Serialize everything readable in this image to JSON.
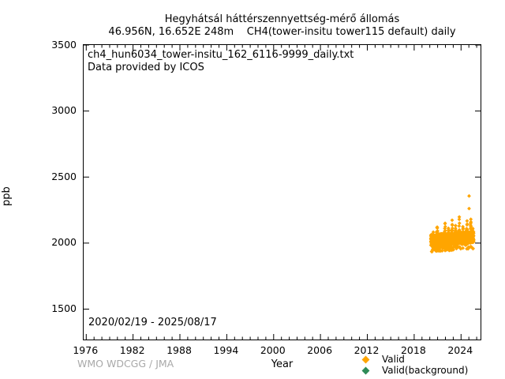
{
  "header": {
    "title_line1": "Hegyhátsál háttérszennyettség-mérő állomás",
    "title_line2": "46.956N, 16.652E 248m    CH4(tower-insitu tower115 default) daily"
  },
  "plot": {
    "annotation_line1": "ch4_hun6034_tower-insitu_162_6116-9999_daily.txt",
    "annotation_line2": "Data provided by ICOS",
    "date_range": "2020/02/19 - 2025/08/17"
  },
  "footer": {
    "credit": "WMO WDCGG / JMA"
  },
  "chart_data": {
    "type": "scatter",
    "title": "Hegyhátsál háttérszennyettség-mérő állomás",
    "xlabel": "Year",
    "ylabel": "ppb",
    "x_range": [
      1975.67,
      2026.5
    ],
    "y_range": [
      1270,
      3500
    ],
    "x_ticks": [
      1976,
      1982,
      1988,
      1994,
      2000,
      2006,
      2012,
      2018,
      2024
    ],
    "x_minor_step": 1,
    "y_ticks": [
      1500,
      2000,
      2500,
      3000,
      3500
    ],
    "grid": false,
    "legend_position": "bottom-right-outside",
    "series": [
      {
        "name": "Valid",
        "color": "#ffa500",
        "marker": "diamond",
        "coverage": [
          2020.14,
          2025.62
        ],
        "baseline": {
          "start_ppb": 1983,
          "trend_ppb_per_yr": 4.5,
          "band_ppb": 82
        },
        "low_scatter": {
          "probability": 0.05,
          "max_drop_ppb": 50
        },
        "spikes": [
          [
            2020.45,
            2115
          ],
          [
            2020.95,
            2180
          ],
          [
            2021.45,
            2110
          ],
          [
            2021.95,
            2170
          ],
          [
            2022.4,
            2130
          ],
          [
            2022.85,
            2210
          ],
          [
            2023.3,
            2150
          ],
          [
            2023.78,
            2230
          ],
          [
            2024.25,
            2160
          ],
          [
            2024.78,
            2235
          ],
          [
            2025.25,
            2200
          ],
          [
            2025.5,
            2160
          ]
        ],
        "outliers": [
          [
            2025.03,
            2357
          ],
          [
            2025.03,
            2262
          ]
        ],
        "observed_min_ppb": 1935,
        "observed_max_ppb": 2357
      },
      {
        "name": "Valid(background)",
        "color": "#2e8b57",
        "marker": "diamond",
        "points": []
      }
    ]
  }
}
